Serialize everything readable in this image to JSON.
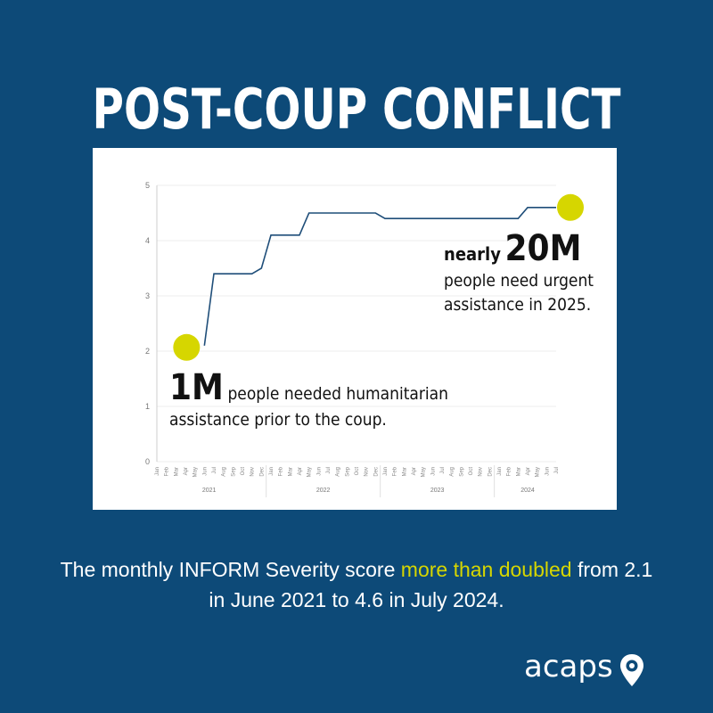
{
  "header": {
    "title": "POST-COUP CONFLICT"
  },
  "annotations": {
    "left": {
      "value": "1M",
      "text_inline": "people needed humanitarian",
      "text_line2": "assistance prior to the coup."
    },
    "right": {
      "prefix": "nearly",
      "value": "20M",
      "text_line1": "people need urgent",
      "text_line2": "assistance in 2025."
    }
  },
  "caption": {
    "part1": "The monthly INFORM Severity score ",
    "highlight": "more than doubled",
    "part2": " from 2.1 in June 2021 to 4.6 in July 2024."
  },
  "logo": {
    "text": "acaps"
  },
  "colors": {
    "background": "#0d4a78",
    "line": "#1f4e79",
    "highlight": "#d6d600",
    "marker": "#d6d600"
  },
  "chart_data": {
    "type": "line",
    "x_labels": [
      "Jan",
      "Feb",
      "Mar",
      "Apr",
      "May",
      "Jun",
      "Jul",
      "Aug",
      "Sep",
      "Oct",
      "Nov",
      "Dec",
      "Jan",
      "Feb",
      "Mar",
      "Apr",
      "May",
      "Jun",
      "Jul",
      "Aug",
      "Sep",
      "Oct",
      "Nov",
      "Dec",
      "Jan",
      "Feb",
      "Mar",
      "Apr",
      "May",
      "Jun",
      "Jul",
      "Aug",
      "Sep",
      "Oct",
      "Nov",
      "Dec",
      "Jan",
      "Feb",
      "Mar",
      "Apr",
      "May",
      "Jun",
      "Jul"
    ],
    "years": [
      "2021",
      "2022",
      "2023",
      "2024"
    ],
    "series": [
      {
        "values": [
          null,
          null,
          null,
          null,
          null,
          2.1,
          3.4,
          3.4,
          3.4,
          3.4,
          3.4,
          3.5,
          4.1,
          4.1,
          4.1,
          4.1,
          4.5,
          4.5,
          4.5,
          4.5,
          4.5,
          4.5,
          4.5,
          4.5,
          4.4,
          4.4,
          4.4,
          4.4,
          4.4,
          4.4,
          4.4,
          4.4,
          4.4,
          4.4,
          4.4,
          4.4,
          4.4,
          4.4,
          4.4,
          4.6,
          4.6,
          4.6,
          4.6
        ]
      }
    ],
    "yticks": [
      0,
      1,
      2,
      3,
      4,
      5
    ],
    "ylim": [
      0,
      5
    ],
    "markers": [
      {
        "index": 5,
        "value": 2.1
      },
      {
        "index": 42,
        "value": 4.6
      }
    ],
    "grid": true
  }
}
